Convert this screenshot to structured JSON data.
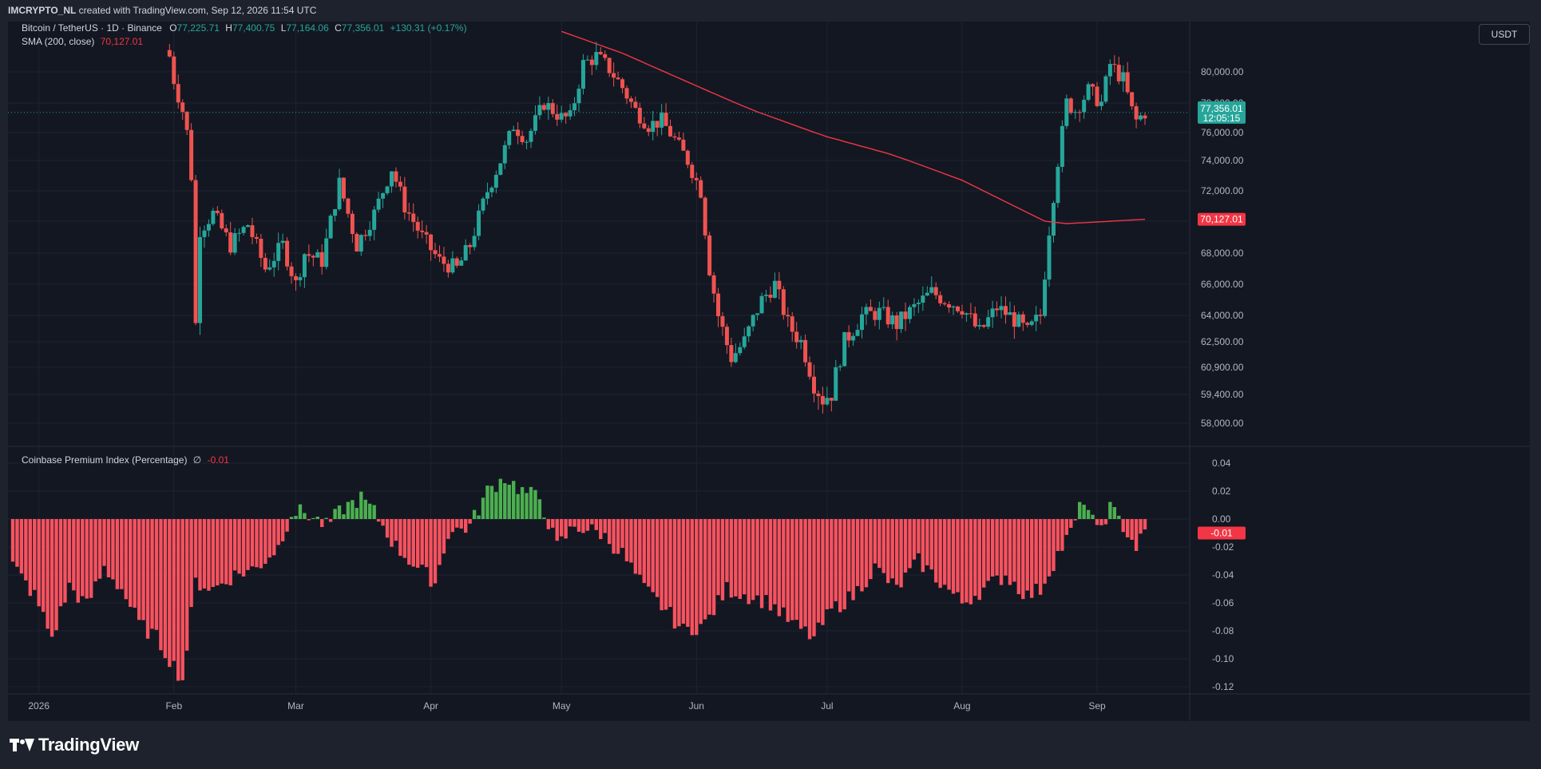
{
  "header": {
    "author": "IMCRYPTO_NL",
    "caption": " created with TradingView.com, Sep 12, 2026 11:54 UTC"
  },
  "footer": {
    "brand": "TradingView"
  },
  "currency": "USDT",
  "legend": {
    "symbol": "Bitcoin / TetherUS · 1D · Binance",
    "o_label": "O",
    "o_value": "77,225.71",
    "h_label": "H",
    "h_value": "77,400.75",
    "l_label": "L",
    "l_value": "77,164.06",
    "c_label": "C",
    "c_value": "77,356.01",
    "change": "+130.31 (+0.17%)",
    "sma_label": "SMA (200, close)",
    "sma_value": "70,127.01",
    "premium_label": "Coinbase Premium Index (Percentage)",
    "premium_symbol": "∅",
    "premium_value": "-0.01"
  },
  "colors": {
    "up": "#26a69a",
    "down": "#ef5350",
    "sma": "#f23645",
    "hist_pos": "#4caf50",
    "hist_neg": "#f7525f",
    "background": "#131722",
    "grid": "#1f2330"
  },
  "chart_data": [
    {
      "type": "candlestick",
      "series_name": "Bitcoin / TetherUS",
      "timeframe": "1D",
      "x_range": [
        "2025-12-26",
        "2026-09-12"
      ],
      "y_ticks": [
        "80,000.00",
        "78,000.00",
        "76,000.00",
        "74,000.00",
        "72,000.00",
        "70,000.00",
        "68,000.00",
        "66,000.00",
        "64,000.00",
        "62,500.00",
        "60,900.00",
        "59,400.00",
        "58,000.00"
      ],
      "y_tick_values": [
        80000,
        78000,
        76000,
        74000,
        72000,
        70000,
        68000,
        66000,
        64000,
        62500,
        60900,
        59400,
        58000
      ],
      "x_ticks": [
        {
          "label": "2026",
          "date": "2026-01-01"
        },
        {
          "label": "Feb",
          "date": "2026-02-01"
        },
        {
          "label": "Mar",
          "date": "2026-03-01"
        },
        {
          "label": "Apr",
          "date": "2026-04-01"
        },
        {
          "label": "May",
          "date": "2026-05-01"
        },
        {
          "label": "Jun",
          "date": "2026-06-01"
        },
        {
          "label": "Jul",
          "date": "2026-07-01"
        },
        {
          "label": "Aug",
          "date": "2026-08-01"
        },
        {
          "label": "Sep",
          "date": "2026-09-01"
        }
      ],
      "last_price": 77356.01,
      "last_price_label": "77,356.01",
      "countdown": "12:05:15",
      "sma_last": 70127.01,
      "sma_last_label": "70,127.01",
      "close_keypoints": [
        [
          "2026-01-31",
          81000
        ],
        [
          "2026-02-01",
          79500
        ],
        [
          "2026-02-02",
          78500
        ],
        [
          "2026-02-03",
          77500
        ],
        [
          "2026-02-04",
          76000
        ],
        [
          "2026-02-05",
          73000
        ],
        [
          "2026-02-06",
          63500
        ],
        [
          "2026-02-07",
          69500
        ],
        [
          "2026-02-10",
          70500
        ],
        [
          "2026-02-14",
          68500
        ],
        [
          "2026-02-18",
          69800
        ],
        [
          "2026-02-22",
          67000
        ],
        [
          "2026-02-26",
          68500
        ],
        [
          "2026-03-01",
          66000
        ],
        [
          "2026-03-03",
          68000
        ],
        [
          "2026-03-07",
          67500
        ],
        [
          "2026-03-11",
          72500
        ],
        [
          "2026-03-15",
          68500
        ],
        [
          "2026-03-19",
          70500
        ],
        [
          "2026-03-23",
          73500
        ],
        [
          "2026-03-26",
          71000
        ],
        [
          "2026-03-30",
          69000
        ],
        [
          "2026-04-03",
          67500
        ],
        [
          "2026-04-07",
          67000
        ],
        [
          "2026-04-10",
          68500
        ],
        [
          "2026-04-14",
          72000
        ],
        [
          "2026-04-17",
          74000
        ],
        [
          "2026-04-20",
          76500
        ],
        [
          "2026-04-23",
          75500
        ],
        [
          "2026-04-27",
          78000
        ],
        [
          "2026-05-01",
          77000
        ],
        [
          "2026-05-03",
          77000
        ],
        [
          "2026-05-06",
          80500
        ],
        [
          "2026-05-09",
          81000
        ],
        [
          "2026-05-12",
          80200
        ],
        [
          "2026-05-15",
          79000
        ],
        [
          "2026-05-18",
          77500
        ],
        [
          "2026-05-21",
          76500
        ],
        [
          "2026-05-24",
          76800
        ],
        [
          "2026-05-27",
          75500
        ],
        [
          "2026-05-30",
          74000
        ],
        [
          "2026-06-02",
          72000
        ],
        [
          "2026-06-04",
          67000
        ],
        [
          "2026-06-06",
          64000
        ],
        [
          "2026-06-09",
          61500
        ],
        [
          "2026-06-12",
          62500
        ],
        [
          "2026-06-16",
          65000
        ],
        [
          "2026-06-19",
          66000
        ],
        [
          "2026-06-22",
          63500
        ],
        [
          "2026-06-25",
          62500
        ],
        [
          "2026-06-28",
          60000
        ],
        [
          "2026-06-30",
          59200
        ],
        [
          "2026-07-02",
          59500
        ],
        [
          "2026-07-05",
          62500
        ],
        [
          "2026-07-09",
          64000
        ],
        [
          "2026-07-13",
          64200
        ],
        [
          "2026-07-17",
          63500
        ],
        [
          "2026-07-21",
          64500
        ],
        [
          "2026-07-25",
          65500
        ],
        [
          "2026-07-28",
          65000
        ],
        [
          "2026-08-01",
          64500
        ],
        [
          "2026-08-05",
          63000
        ],
        [
          "2026-08-09",
          64500
        ],
        [
          "2026-08-13",
          63800
        ],
        [
          "2026-08-16",
          63000
        ],
        [
          "2026-08-19",
          64000
        ],
        [
          "2026-08-21",
          69500
        ],
        [
          "2026-08-23",
          74000
        ],
        [
          "2026-08-25",
          78000
        ],
        [
          "2026-08-27",
          77500
        ],
        [
          "2026-08-30",
          78800
        ],
        [
          "2026-09-02",
          78000
        ],
        [
          "2026-09-04",
          80500
        ],
        [
          "2026-09-07",
          79500
        ],
        [
          "2026-09-09",
          77500
        ],
        [
          "2026-09-10",
          76800
        ],
        [
          "2026-09-12",
          77356.01
        ]
      ],
      "sma_keypoints": [
        [
          "2026-05-01",
          82600
        ],
        [
          "2026-05-15",
          81200
        ],
        [
          "2026-06-01",
          79100
        ],
        [
          "2026-06-15",
          77400
        ],
        [
          "2026-07-01",
          75700
        ],
        [
          "2026-07-15",
          74500
        ],
        [
          "2026-08-01",
          72700
        ],
        [
          "2026-08-20",
          70000
        ],
        [
          "2026-08-25",
          69850
        ],
        [
          "2026-09-01",
          69950
        ],
        [
          "2026-09-12",
          70127.01
        ]
      ]
    },
    {
      "type": "histogram",
      "series_name": "Coinbase Premium Index (Percentage)",
      "y_ticks": [
        "0.04",
        "0.02",
        "0.00",
        "-0.02",
        "-0.04",
        "-0.06",
        "-0.08",
        "-0.10",
        "-0.12"
      ],
      "y_tick_values": [
        0.04,
        0.02,
        0.0,
        -0.02,
        -0.04,
        -0.06,
        -0.08,
        -0.1,
        -0.12
      ],
      "last_value": -0.01,
      "last_value_label": "-0.01",
      "keypoints": [
        [
          "2025-12-26",
          -0.033
        ],
        [
          "2025-12-31",
          -0.055
        ],
        [
          "2026-01-04",
          -0.085
        ],
        [
          "2026-01-08",
          -0.048
        ],
        [
          "2026-01-12",
          -0.062
        ],
        [
          "2026-01-16",
          -0.035
        ],
        [
          "2026-01-20",
          -0.05
        ],
        [
          "2026-01-24",
          -0.075
        ],
        [
          "2026-01-28",
          -0.085
        ],
        [
          "2026-02-03",
          -0.115
        ],
        [
          "2026-02-06",
          -0.045
        ],
        [
          "2026-02-10",
          -0.05
        ],
        [
          "2026-02-15",
          -0.04
        ],
        [
          "2026-02-20",
          -0.035
        ],
        [
          "2026-02-25",
          -0.02
        ],
        [
          "2026-02-28",
          0.005
        ],
        [
          "2026-03-03",
          0.005
        ],
        [
          "2026-03-08",
          -0.005
        ],
        [
          "2026-03-12",
          0.008
        ],
        [
          "2026-03-16",
          0.015
        ],
        [
          "2026-03-19",
          0.005
        ],
        [
          "2026-03-24",
          -0.02
        ],
        [
          "2026-03-29",
          -0.035
        ],
        [
          "2026-04-02",
          -0.045
        ],
        [
          "2026-04-05",
          -0.01
        ],
        [
          "2026-04-10",
          -0.005
        ],
        [
          "2026-04-14",
          0.02
        ],
        [
          "2026-04-18",
          0.03
        ],
        [
          "2026-04-22",
          0.02
        ],
        [
          "2026-04-26",
          0.015
        ],
        [
          "2026-04-30",
          -0.02
        ],
        [
          "2026-05-04",
          -0.005
        ],
        [
          "2026-05-10",
          -0.01
        ],
        [
          "2026-05-15",
          -0.025
        ],
        [
          "2026-05-20",
          -0.05
        ],
        [
          "2026-05-25",
          -0.065
        ],
        [
          "2026-05-29",
          -0.08
        ],
        [
          "2026-06-03",
          -0.075
        ],
        [
          "2026-06-08",
          -0.05
        ],
        [
          "2026-06-13",
          -0.055
        ],
        [
          "2026-06-18",
          -0.06
        ],
        [
          "2026-06-23",
          -0.075
        ],
        [
          "2026-06-28",
          -0.085
        ],
        [
          "2026-07-02",
          -0.065
        ],
        [
          "2026-07-07",
          -0.055
        ],
        [
          "2026-07-12",
          -0.035
        ],
        [
          "2026-07-17",
          -0.05
        ],
        [
          "2026-07-22",
          -0.03
        ],
        [
          "2026-07-27",
          -0.045
        ],
        [
          "2026-08-01",
          -0.06
        ],
        [
          "2026-08-06",
          -0.05
        ],
        [
          "2026-08-11",
          -0.04
        ],
        [
          "2026-08-16",
          -0.055
        ],
        [
          "2026-08-19",
          -0.05
        ],
        [
          "2026-08-23",
          -0.025
        ],
        [
          "2026-08-26",
          -0.01
        ],
        [
          "2026-08-29",
          0.015
        ],
        [
          "2026-09-01",
          -0.01
        ],
        [
          "2026-09-04",
          0.008
        ],
        [
          "2026-09-07",
          -0.005
        ],
        [
          "2026-09-10",
          -0.02
        ],
        [
          "2026-09-12",
          -0.01
        ]
      ]
    }
  ]
}
